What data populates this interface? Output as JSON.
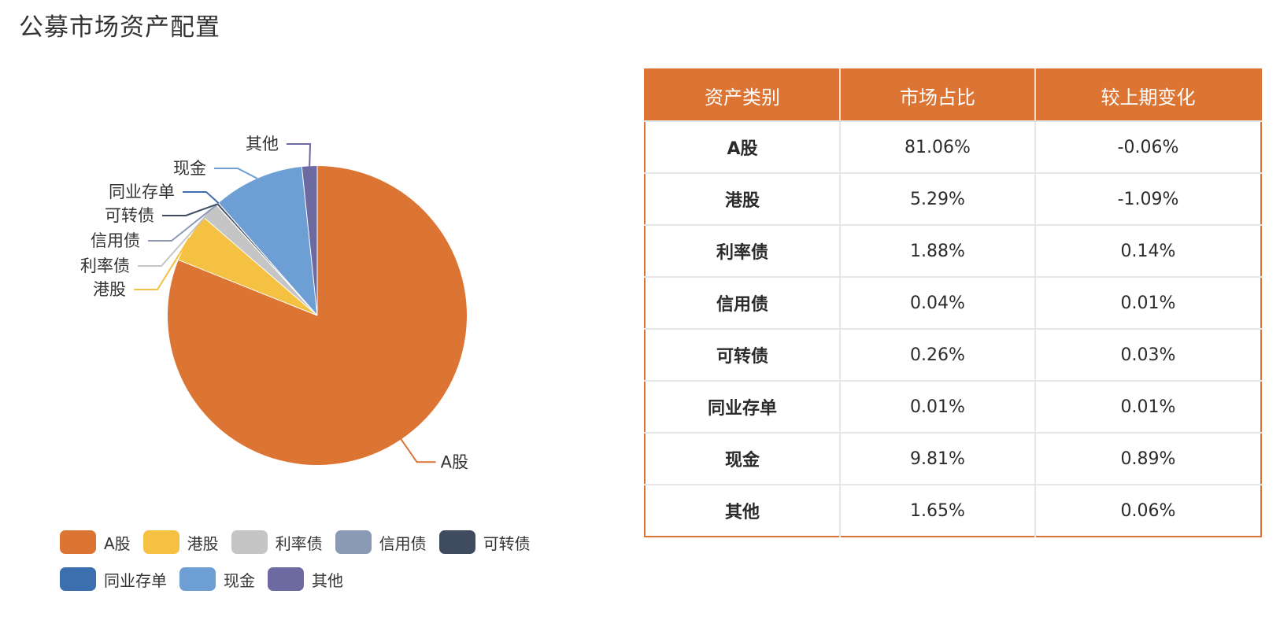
{
  "title": "公募市场资产配置",
  "chart_data": {
    "type": "pie",
    "title": "公募市场资产配置",
    "categories": [
      "A股",
      "港股",
      "利率债",
      "信用债",
      "可转债",
      "同业存单",
      "现金",
      "其他"
    ],
    "values": [
      81.06,
      5.29,
      1.88,
      0.04,
      0.26,
      0.01,
      9.81,
      1.65
    ],
    "unit": "%",
    "start_angle": "top (12 o'clock), clockwise",
    "colors": [
      "#dc7434",
      "#f5c142",
      "#c5c5c5",
      "#8a9ab5",
      "#3f4b5e",
      "#3c6fae",
      "#6e9fd4",
      "#6c6aa1"
    ],
    "legend_position": "bottom",
    "grid": false
  },
  "table": {
    "headers": [
      "资产类别",
      "市场占比",
      "较上期变化"
    ],
    "rows": [
      [
        "A股",
        "81.06%",
        "-0.06%"
      ],
      [
        "港股",
        "5.29%",
        "-1.09%"
      ],
      [
        "利率债",
        "1.88%",
        "0.14%"
      ],
      [
        "信用债",
        "0.04%",
        "0.01%"
      ],
      [
        "可转债",
        "0.26%",
        "0.03%"
      ],
      [
        "同业存单",
        "0.01%",
        "0.01%"
      ],
      [
        "现金",
        "9.81%",
        "0.89%"
      ],
      [
        "其他",
        "1.65%",
        "0.06%"
      ]
    ],
    "header_color": "#dc7434"
  }
}
